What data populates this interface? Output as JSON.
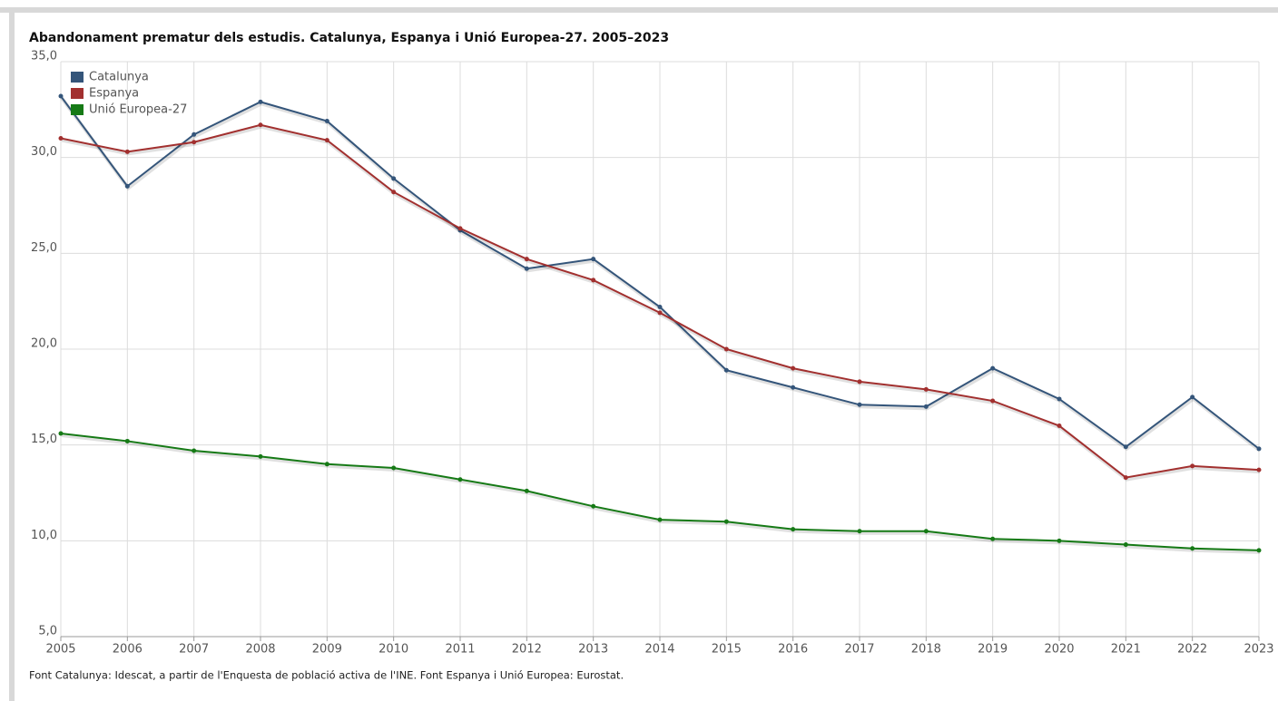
{
  "chart_data": {
    "type": "line",
    "title": "Abandonament prematur dels estudis. Catalunya, Espanya i Unió Europea-27. 2005–2023",
    "source": "Font Catalunya: Idescat, a partir de l'Enquesta de població activa de l'INE. Font Espanya i Unió Europea: Eurostat.",
    "x": [
      2005,
      2006,
      2007,
      2008,
      2009,
      2010,
      2011,
      2012,
      2013,
      2014,
      2015,
      2016,
      2017,
      2018,
      2019,
      2020,
      2021,
      2022,
      2023
    ],
    "xlim": [
      2005,
      2023
    ],
    "xticks": [
      2005,
      2006,
      2007,
      2008,
      2009,
      2010,
      2011,
      2012,
      2013,
      2014,
      2015,
      2016,
      2017,
      2018,
      2019,
      2020,
      2021,
      2022,
      2023
    ],
    "ylim": [
      5,
      35
    ],
    "yticks": [
      {
        "value": 5,
        "label": "5,0"
      },
      {
        "value": 10,
        "label": "10,0"
      },
      {
        "value": 15,
        "label": "15,0"
      },
      {
        "value": 20,
        "label": "20,0"
      },
      {
        "value": 25,
        "label": "25,0"
      },
      {
        "value": 30,
        "label": "30,0"
      },
      {
        "value": 35,
        "label": "35,0"
      }
    ],
    "grid": true,
    "legend": "top-left",
    "series": [
      {
        "name": "Catalunya",
        "color": "#34557a",
        "values": [
          33.2,
          28.5,
          31.2,
          32.9,
          31.9,
          28.9,
          26.2,
          24.2,
          24.7,
          22.2,
          18.9,
          18.0,
          17.1,
          17.0,
          19.0,
          17.4,
          14.9,
          17.5,
          14.8
        ]
      },
      {
        "name": "Espanya",
        "color": "#a2302f",
        "values": [
          31.0,
          30.3,
          30.8,
          31.7,
          30.9,
          28.2,
          26.3,
          24.7,
          23.6,
          21.9,
          20.0,
          19.0,
          18.3,
          17.9,
          17.3,
          16.0,
          13.3,
          13.9,
          13.7
        ]
      },
      {
        "name": "Unió Europea-27",
        "color": "#167a16",
        "values": [
          15.6,
          15.2,
          14.7,
          14.4,
          14.0,
          13.8,
          13.2,
          12.6,
          11.8,
          11.1,
          11.0,
          10.6,
          10.5,
          10.5,
          10.1,
          10.0,
          9.8,
          9.6,
          9.5
        ]
      }
    ]
  }
}
